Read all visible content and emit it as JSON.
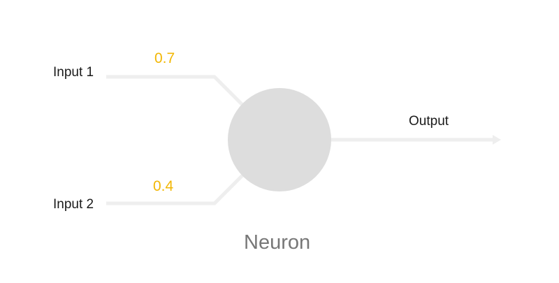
{
  "inputs": [
    {
      "label": "Input 1",
      "weight": "0.7"
    },
    {
      "label": "Input 2",
      "weight": "0.4"
    }
  ],
  "output": {
    "label": "Output"
  },
  "neuron": {
    "label": "Neuron"
  },
  "colors": {
    "connection": "#eeeeee",
    "neuron_fill": "#dddddd",
    "weight_text": "#f2b705",
    "label_text": "#1a1a1a",
    "neuron_text": "#777777"
  }
}
